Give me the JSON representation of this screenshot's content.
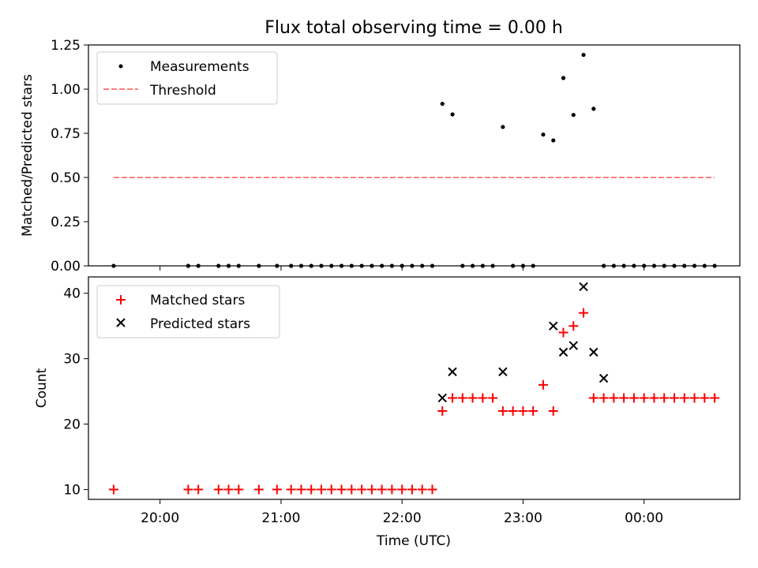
{
  "chart_data": [
    {
      "type": "scatter",
      "title": "Flux total observing time = 0.00 h",
      "xlabel": "",
      "ylabel": "Matched/Predicted stars",
      "ylim": [
        0,
        1.25
      ],
      "yticks": [
        0.0,
        0.25,
        0.5,
        0.75,
        1.0,
        1.25
      ],
      "ytick_labels": [
        "0.00",
        "0.25",
        "0.50",
        "0.75",
        "1.00",
        "1.25"
      ],
      "legend_position": "top-left",
      "colors": {
        "measurements": "#000000",
        "threshold": "#ff7f7f"
      },
      "series": [
        {
          "name": "Measurements",
          "marker": "dot",
          "x": [
            "19:37",
            "20:14",
            "20:19",
            "20:29",
            "20:34",
            "20:39",
            "20:49",
            "20:58",
            "21:05",
            "21:10",
            "21:15",
            "21:20",
            "21:25",
            "21:30",
            "21:35",
            "21:40",
            "21:45",
            "21:50",
            "21:55",
            "22:00",
            "22:05",
            "22:10",
            "22:15",
            "22:20",
            "22:25",
            "22:30",
            "22:35",
            "22:40",
            "22:45",
            "22:50",
            "22:55",
            "23:00",
            "23:05",
            "23:10",
            "23:15",
            "23:20",
            "23:25",
            "23:30",
            "23:35",
            "23:40",
            "23:45",
            "23:50",
            "23:55",
            "00:00",
            "00:05",
            "00:10",
            "00:15",
            "00:20",
            "00:25",
            "00:30",
            "00:35"
          ],
          "y": [
            0,
            0,
            0,
            0,
            0,
            0,
            0,
            0,
            0,
            0,
            0,
            0,
            0,
            0,
            0,
            0,
            0,
            0,
            0,
            0,
            0,
            0,
            0,
            0.917,
            0.857,
            0,
            0,
            0,
            0,
            0.786,
            0,
            0,
            0,
            0.743,
            0.71,
            1.063,
            0.854,
            1.194,
            0.889,
            0,
            0,
            0,
            0,
            0,
            0,
            0,
            0,
            0,
            0,
            0,
            0
          ]
        },
        {
          "name": "Threshold",
          "marker": "dashed-line",
          "x": [
            "19:37",
            "00:35"
          ],
          "y": [
            0.5,
            0.5
          ]
        }
      ]
    },
    {
      "type": "scatter",
      "title": "",
      "xlabel": "Time (UTC)",
      "ylabel": "Count",
      "ylim": [
        8.5,
        42.5
      ],
      "yticks": [
        10,
        20,
        30,
        40
      ],
      "ytick_labels": [
        "10",
        "20",
        "30",
        "40"
      ],
      "x_tick_labels": [
        "20:00",
        "21:00",
        "22:00",
        "23:00",
        "00:00"
      ],
      "legend_position": "top-left",
      "colors": {
        "matched": "#ff0000",
        "predicted": "#000000"
      },
      "series": [
        {
          "name": "Matched stars",
          "marker": "plus",
          "x": [
            "19:37",
            "20:14",
            "20:19",
            "20:29",
            "20:34",
            "20:39",
            "20:49",
            "20:58",
            "21:05",
            "21:10",
            "21:15",
            "21:20",
            "21:25",
            "21:30",
            "21:35",
            "21:40",
            "21:45",
            "21:50",
            "21:55",
            "22:00",
            "22:05",
            "22:10",
            "22:15",
            "22:20",
            "22:25",
            "22:30",
            "22:35",
            "22:40",
            "22:45",
            "22:50",
            "22:55",
            "23:00",
            "23:05",
            "23:10",
            "23:15",
            "23:20",
            "23:25",
            "23:30",
            "23:35",
            "23:40",
            "23:45",
            "23:50",
            "23:55",
            "00:00",
            "00:05",
            "00:10",
            "00:15",
            "00:20",
            "00:25",
            "00:30",
            "00:35"
          ],
          "y": [
            10,
            10,
            10,
            10,
            10,
            10,
            10,
            10,
            10,
            10,
            10,
            10,
            10,
            10,
            10,
            10,
            10,
            10,
            10,
            10,
            10,
            10,
            10,
            22,
            24,
            24,
            24,
            24,
            24,
            22,
            22,
            22,
            22,
            26,
            22,
            34,
            35,
            37,
            24,
            24,
            24,
            24,
            24,
            24,
            24,
            24,
            24,
            24,
            24,
            24,
            24
          ]
        },
        {
          "name": "Predicted stars",
          "marker": "x",
          "x": [
            "22:20",
            "22:25",
            "22:50",
            "23:15",
            "23:20",
            "23:25",
            "23:30",
            "23:35",
            "23:40"
          ],
          "y": [
            24,
            28,
            28,
            35,
            31,
            32,
            41,
            31,
            27
          ]
        }
      ]
    }
  ]
}
